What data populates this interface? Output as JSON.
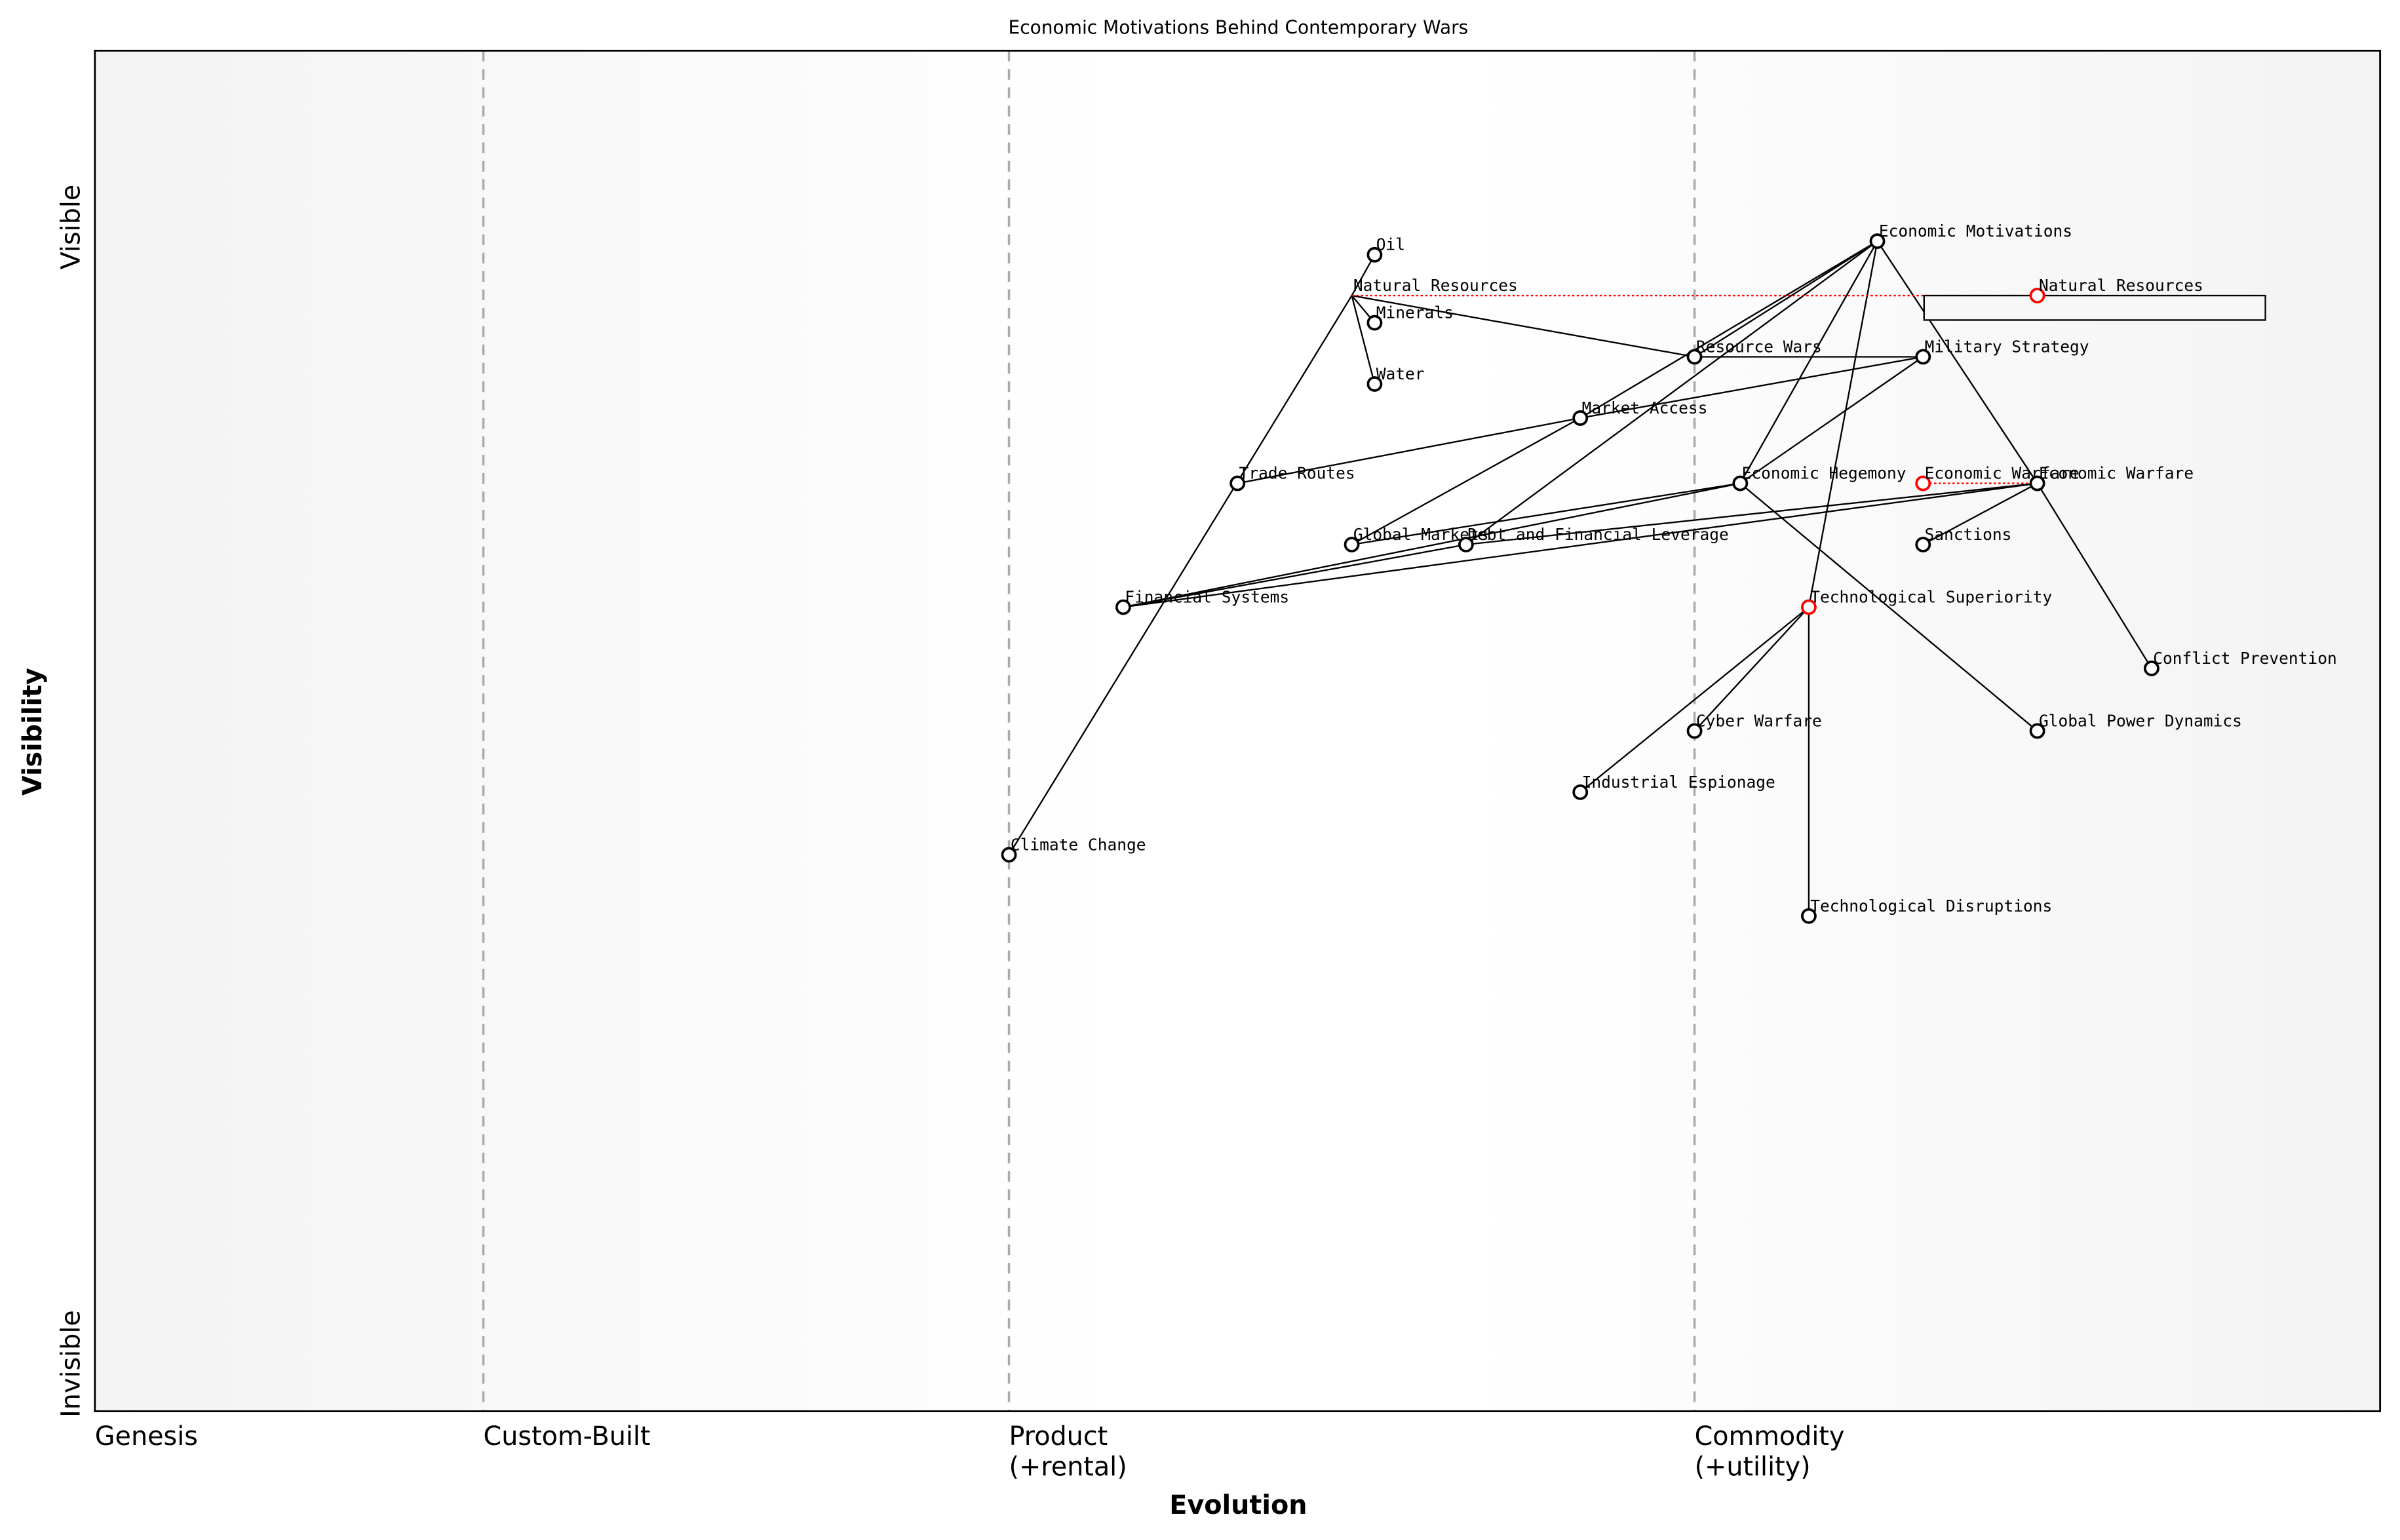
{
  "title": "Economic Motivations Behind Contemporary Wars",
  "x_axis": {
    "label": "Evolution",
    "stages": [
      {
        "value": 0.0,
        "line1": "Genesis",
        "line2": ""
      },
      {
        "value": 0.17,
        "line1": "Custom-Built",
        "line2": ""
      },
      {
        "value": 0.4,
        "line1": "Product",
        "line2": "(+rental)"
      },
      {
        "value": 0.7,
        "line1": "Commodity",
        "line2": "(+utility)"
      }
    ],
    "range": [
      0,
      1
    ]
  },
  "y_axis": {
    "label": "Visibility",
    "top_label": "Visible",
    "bottom_label": "Invisible",
    "range": [
      0,
      1
    ]
  },
  "colors": {
    "node": "#000000",
    "evolved": "#ff0000",
    "stage_line": "#aaaaaa"
  },
  "components": [
    {
      "name": "Economic Motivations",
      "evolution": 0.78,
      "visibility": 0.86
    },
    {
      "name": "Oil",
      "evolution": 0.56,
      "visibility": 0.85
    },
    {
      "name": "Natural Resources",
      "evolution": 0.55,
      "visibility": 0.82,
      "hidden_marker": true
    },
    {
      "name": "Minerals",
      "evolution": 0.56,
      "visibility": 0.8
    },
    {
      "name": "Water",
      "evolution": 0.56,
      "visibility": 0.755
    },
    {
      "name": "Resource Wars",
      "evolution": 0.7,
      "visibility": 0.775
    },
    {
      "name": "Military Strategy",
      "evolution": 0.8,
      "visibility": 0.775
    },
    {
      "name": "Market Access",
      "evolution": 0.65,
      "visibility": 0.73
    },
    {
      "name": "Trade Routes",
      "evolution": 0.5,
      "visibility": 0.682
    },
    {
      "name": "Economic Hegemony",
      "evolution": 0.72,
      "visibility": 0.682
    },
    {
      "name": "Economic Warfare",
      "evolution": 0.85,
      "visibility": 0.682
    },
    {
      "name": "Global Markets",
      "evolution": 0.55,
      "visibility": 0.637
    },
    {
      "name": "Debt and Financial Leverage",
      "evolution": 0.6,
      "visibility": 0.637
    },
    {
      "name": "Sanctions",
      "evolution": 0.8,
      "visibility": 0.637
    },
    {
      "name": "Financial Systems",
      "evolution": 0.45,
      "visibility": 0.591
    },
    {
      "name": "Technological Superiority",
      "evolution": 0.75,
      "visibility": 0.591,
      "evolved": true
    },
    {
      "name": "Conflict Prevention",
      "evolution": 0.9,
      "visibility": 0.546
    },
    {
      "name": "Cyber Warfare",
      "evolution": 0.7,
      "visibility": 0.5
    },
    {
      "name": "Global Power Dynamics",
      "evolution": 0.85,
      "visibility": 0.5
    },
    {
      "name": "Industrial Espionage",
      "evolution": 0.65,
      "visibility": 0.455
    },
    {
      "name": "Climate Change",
      "evolution": 0.4,
      "visibility": 0.409
    },
    {
      "name": "Technological Disruptions",
      "evolution": 0.75,
      "visibility": 0.364
    }
  ],
  "evolved_components": [
    {
      "name": "Natural Resources",
      "from": "Natural Resources",
      "evolution": 0.85,
      "visibility": 0.82,
      "boxed": true
    },
    {
      "name": "Economic Warfare",
      "from": "Economic Warfare",
      "evolution": 0.8,
      "visibility": 0.682
    }
  ],
  "links": [
    [
      "Economic Motivations",
      "Resource Wars"
    ],
    [
      "Economic Motivations",
      "Market Access"
    ],
    [
      "Economic Motivations",
      "Debt and Financial Leverage"
    ],
    [
      "Economic Motivations",
      "Economic Hegemony"
    ],
    [
      "Economic Motivations",
      "Technological Superiority"
    ],
    [
      "Economic Motivations",
      "Economic Warfare"
    ],
    [
      "Natural Resources",
      "Oil"
    ],
    [
      "Natural Resources",
      "Minerals"
    ],
    [
      "Natural Resources",
      "Water"
    ],
    [
      "Natural Resources",
      "Resource Wars"
    ],
    [
      "Natural Resources",
      "Climate Change"
    ],
    [
      "Resource Wars",
      "Military Strategy"
    ],
    [
      "Military Strategy",
      "Market Access"
    ],
    [
      "Military Strategy",
      "Economic Hegemony"
    ],
    [
      "Market Access",
      "Trade Routes"
    ],
    [
      "Market Access",
      "Global Markets"
    ],
    [
      "Economic Hegemony",
      "Global Markets"
    ],
    [
      "Economic Hegemony",
      "Financial Systems"
    ],
    [
      "Economic Hegemony",
      "Global Power Dynamics"
    ],
    [
      "Economic Warfare",
      "Financial Systems"
    ],
    [
      "Economic Warfare",
      "Debt and Financial Leverage"
    ],
    [
      "Economic Warfare",
      "Sanctions"
    ],
    [
      "Economic Warfare",
      "Conflict Prevention"
    ],
    [
      "Financial Systems",
      "Debt and Financial Leverage"
    ],
    [
      "Technological Superiority",
      "Cyber Warfare"
    ],
    [
      "Technological Superiority",
      "Industrial Espionage"
    ],
    [
      "Technological Superiority",
      "Technological Disruptions"
    ]
  ]
}
